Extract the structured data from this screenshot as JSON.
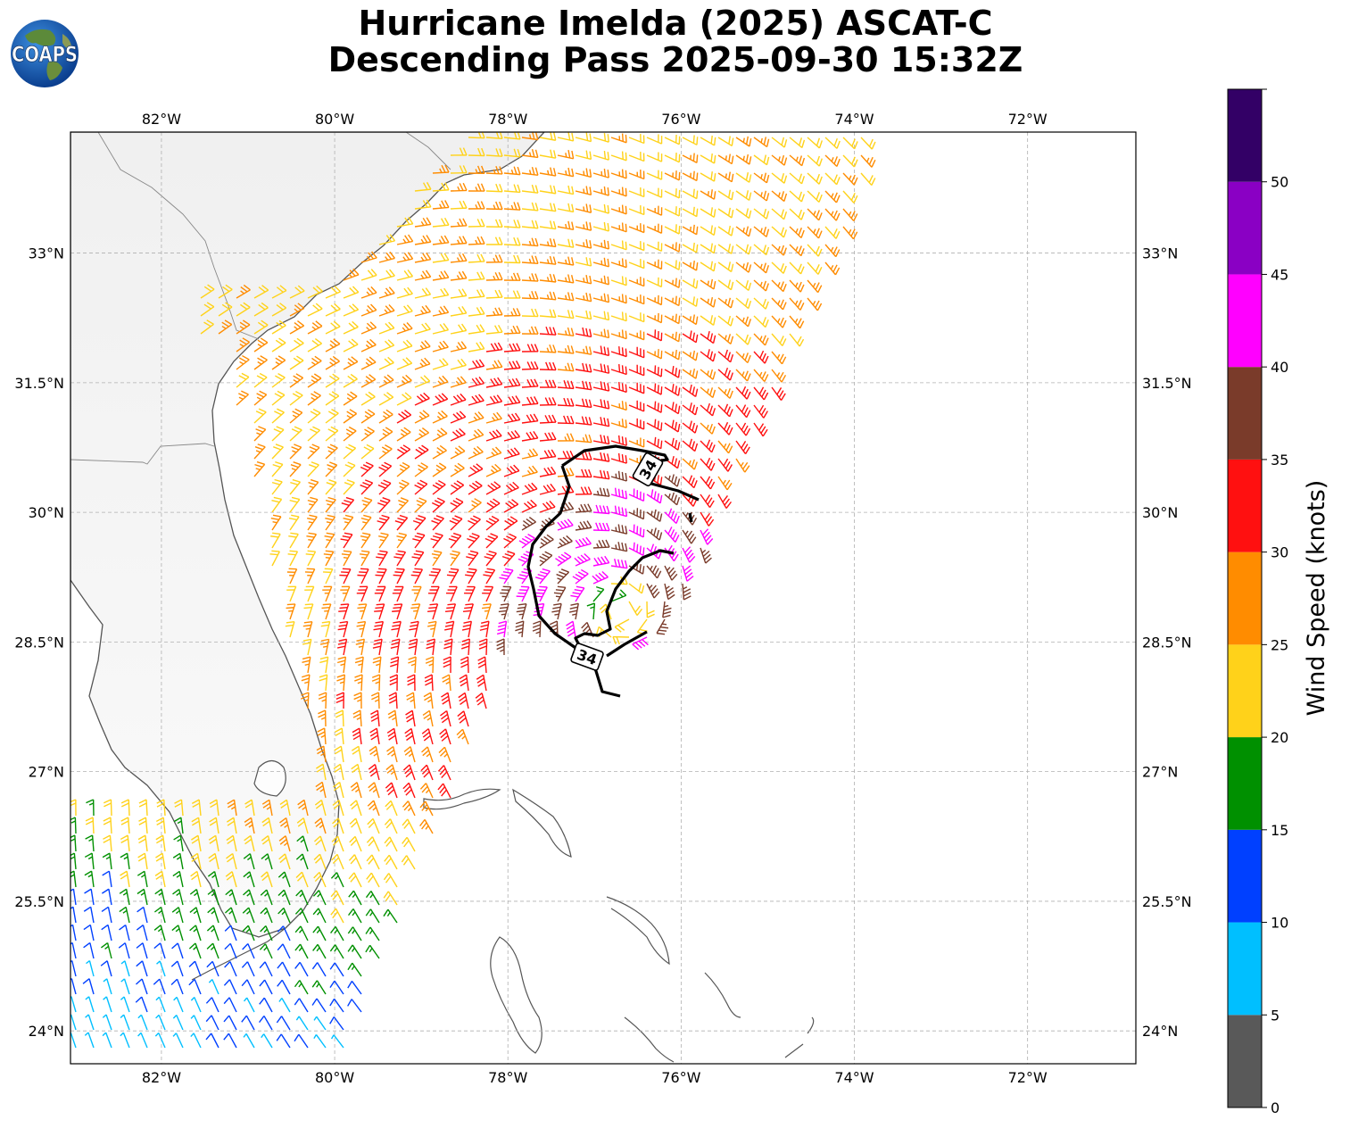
{
  "title": {
    "line1": "Hurricane Imelda (2025) ASCAT-C",
    "line2": "Descending Pass 2025-09-30 15:32Z"
  },
  "logo": {
    "text": "COAPS",
    "icon": "globe-icon"
  },
  "map": {
    "lon_range": [
      -83.05,
      -70.75
    ],
    "lat_range": [
      23.62,
      34.4
    ],
    "lon_ticks": [
      {
        "value": -82,
        "label": "82°W"
      },
      {
        "value": -80,
        "label": "80°W"
      },
      {
        "value": -78,
        "label": "78°W"
      },
      {
        "value": -76,
        "label": "76°W"
      },
      {
        "value": -74,
        "label": "74°W"
      },
      {
        "value": -72,
        "label": "72°W"
      }
    ],
    "lat_ticks": [
      {
        "value": 24,
        "label": "24°N"
      },
      {
        "value": 25.5,
        "label": "25.5°N"
      },
      {
        "value": 27,
        "label": "27°N"
      },
      {
        "value": 28.5,
        "label": "28.5°N"
      },
      {
        "value": 30,
        "label": "30°N"
      },
      {
        "value": 31.5,
        "label": "31.5°N"
      },
      {
        "value": 33,
        "label": "33°N"
      }
    ],
    "storm_center": {
      "lon": -76.7,
      "lat": 28.85
    },
    "contour_labels": [
      "34",
      "34"
    ]
  },
  "colorbar": {
    "label": "Wind Speed (knots)",
    "bins": [
      {
        "min": 0,
        "max": 5,
        "color": "#595959"
      },
      {
        "min": 5,
        "max": 10,
        "color": "#00bfff"
      },
      {
        "min": 10,
        "max": 15,
        "color": "#0040ff"
      },
      {
        "min": 15,
        "max": 20,
        "color": "#009000"
      },
      {
        "min": 20,
        "max": 25,
        "color": "#ffd21a"
      },
      {
        "min": 25,
        "max": 30,
        "color": "#ff8c00"
      },
      {
        "min": 30,
        "max": 35,
        "color": "#ff1010"
      },
      {
        "min": 35,
        "max": 40,
        "color": "#7a3b2a"
      },
      {
        "min": 40,
        "max": 45,
        "color": "#ff00ff"
      },
      {
        "min": 45,
        "max": 50,
        "color": "#8a00c4"
      },
      {
        "min": 50,
        "max": 55,
        "color": "#330066"
      }
    ],
    "tick_labels": [
      "0",
      "5",
      "10",
      "15",
      "20",
      "25",
      "30",
      "35",
      "40",
      "45",
      "50"
    ]
  }
}
